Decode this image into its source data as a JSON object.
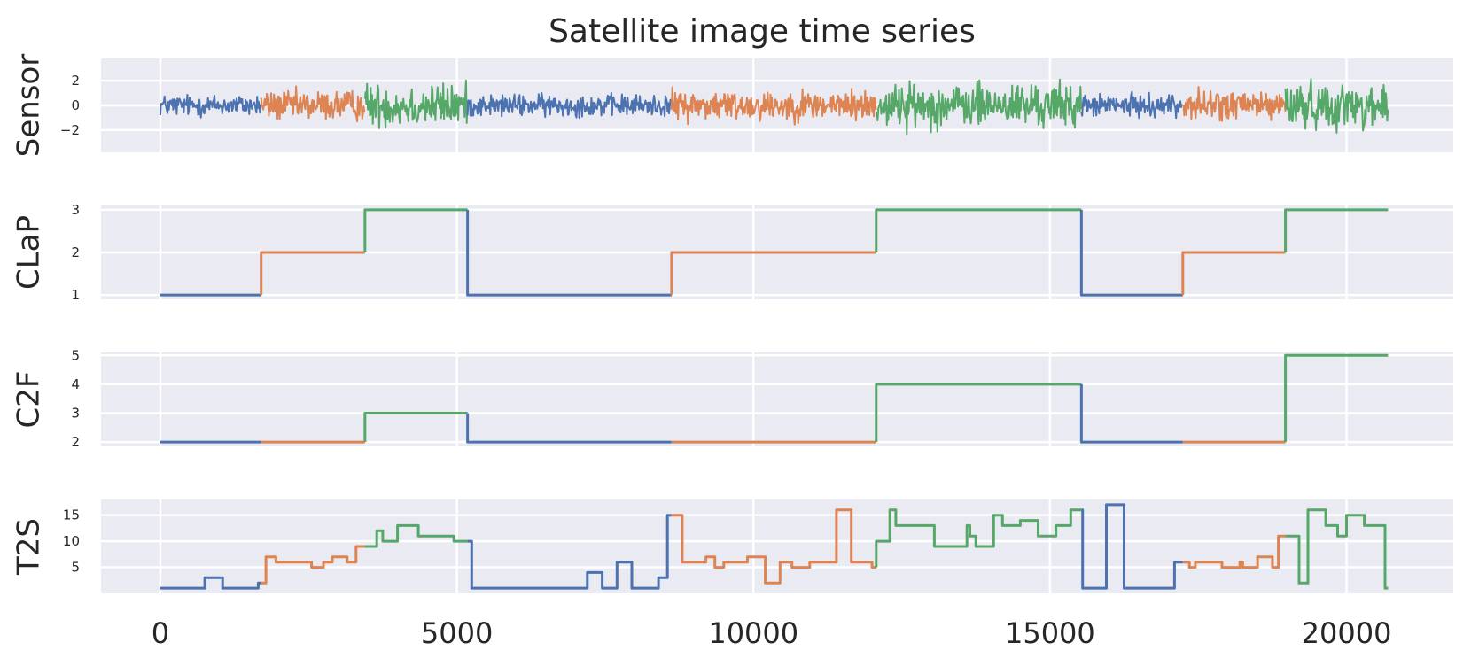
{
  "colors": [
    "#4c72b0",
    "#dd8452",
    "#55a868"
  ],
  "chart_data": {
    "type": "line",
    "title": "Satellite image time series",
    "x_range": [
      -1000,
      21800
    ],
    "x_ticks": [
      0,
      5000,
      10000,
      15000,
      20000
    ],
    "x_tick_labels": [
      "0",
      "5000",
      "10000",
      "15000",
      "20000"
    ],
    "grid": true,
    "segments": [
      {
        "start": 0,
        "end": 1700,
        "class": 0
      },
      {
        "start": 1700,
        "end": 3450,
        "class": 1
      },
      {
        "start": 3450,
        "end": 5180,
        "class": 2
      },
      {
        "start": 5180,
        "end": 8620,
        "class": 0
      },
      {
        "start": 8620,
        "end": 12070,
        "class": 1
      },
      {
        "start": 12070,
        "end": 15530,
        "class": 2
      },
      {
        "start": 15530,
        "end": 17240,
        "class": 0
      },
      {
        "start": 17240,
        "end": 18970,
        "class": 1
      },
      {
        "start": 18970,
        "end": 20700,
        "class": 2
      }
    ],
    "panels": [
      {
        "id": "sensor",
        "ylabel": "Sensor",
        "kind": "signal",
        "ylim": [
          -3.8,
          3.8
        ],
        "yticks": [
          2,
          0,
          -2
        ],
        "ytick_labels": [
          "2",
          "0",
          "−2"
        ],
        "class_amplitude": [
          1.3,
          1.8,
          2.6
        ]
      },
      {
        "id": "clap",
        "ylabel": "CLaP",
        "kind": "step",
        "ylim": [
          0.9,
          3.1
        ],
        "yticks": [
          1,
          2,
          3
        ],
        "ytick_labels": [
          "1",
          "2",
          "3"
        ],
        "steps": [
          {
            "x": [
              0,
              1700
            ],
            "y": 1,
            "class": 0
          },
          {
            "x": [
              1700,
              3450
            ],
            "y": 2,
            "class": 1
          },
          {
            "x": [
              3450,
              5180
            ],
            "y": 3,
            "class": 2
          },
          {
            "x": [
              5180,
              8620
            ],
            "y": 1,
            "class": 0
          },
          {
            "x": [
              8620,
              12070
            ],
            "y": 2,
            "class": 1
          },
          {
            "x": [
              12070,
              15530
            ],
            "y": 3,
            "class": 2
          },
          {
            "x": [
              15530,
              17240
            ],
            "y": 1,
            "class": 0
          },
          {
            "x": [
              17240,
              18970
            ],
            "y": 2,
            "class": 1
          },
          {
            "x": [
              18970,
              20700
            ],
            "y": 3,
            "class": 2
          }
        ]
      },
      {
        "id": "c2f",
        "ylabel": "C2F",
        "kind": "step",
        "ylim": [
          1.85,
          5.1
        ],
        "yticks": [
          2,
          3,
          4,
          5
        ],
        "ytick_labels": [
          "2",
          "3",
          "4",
          "5"
        ],
        "steps": [
          {
            "x": [
              0,
              1700
            ],
            "y": 2,
            "class": 0
          },
          {
            "x": [
              1700,
              3450
            ],
            "y": 2,
            "class": 1
          },
          {
            "x": [
              3450,
              5180
            ],
            "y": 3,
            "class": 2
          },
          {
            "x": [
              5180,
              8620
            ],
            "y": 2,
            "class": 0
          },
          {
            "x": [
              8620,
              12070
            ],
            "y": 2,
            "class": 1
          },
          {
            "x": [
              12070,
              15530
            ],
            "y": 4,
            "class": 2
          },
          {
            "x": [
              15530,
              17240
            ],
            "y": 2,
            "class": 0
          },
          {
            "x": [
              17240,
              18970
            ],
            "y": 2,
            "class": 1
          },
          {
            "x": [
              18970,
              20700
            ],
            "y": 5,
            "class": 2
          }
        ]
      },
      {
        "id": "t2s",
        "ylabel": "T2S",
        "kind": "step_points",
        "ylim": [
          0,
          18
        ],
        "yticks": [
          15,
          10,
          5
        ],
        "ytick_labels": [
          "15",
          "10",
          "5"
        ],
        "series": [
          {
            "class": 0,
            "points": [
              [
                0,
                1
              ],
              [
                750,
                1
              ],
              [
                750,
                3
              ],
              [
                1050,
                3
              ],
              [
                1050,
                1
              ],
              [
                1650,
                1
              ],
              [
                1650,
                2
              ],
              [
                1700,
                2
              ]
            ]
          },
          {
            "class": 1,
            "points": [
              [
                1700,
                2
              ],
              [
                1780,
                2
              ],
              [
                1780,
                7
              ],
              [
                1950,
                7
              ],
              [
                1950,
                6
              ],
              [
                2550,
                6
              ],
              [
                2550,
                5
              ],
              [
                2750,
                5
              ],
              [
                2750,
                6
              ],
              [
                2900,
                6
              ],
              [
                2900,
                7
              ],
              [
                3150,
                7
              ],
              [
                3150,
                6
              ],
              [
                3300,
                6
              ],
              [
                3300,
                9
              ],
              [
                3450,
                9
              ]
            ]
          },
          {
            "class": 2,
            "points": [
              [
                3450,
                9
              ],
              [
                3650,
                9
              ],
              [
                3650,
                12
              ],
              [
                3750,
                12
              ],
              [
                3750,
                10
              ],
              [
                4000,
                10
              ],
              [
                4000,
                13
              ],
              [
                4350,
                13
              ],
              [
                4350,
                11
              ],
              [
                4950,
                11
              ],
              [
                4950,
                10
              ],
              [
                5180,
                10
              ]
            ]
          },
          {
            "class": 0,
            "points": [
              [
                5180,
                10
              ],
              [
                5250,
                10
              ],
              [
                5250,
                1
              ],
              [
                7200,
                1
              ],
              [
                7200,
                4
              ],
              [
                7450,
                4
              ],
              [
                7450,
                1
              ],
              [
                7700,
                1
              ],
              [
                7700,
                6
              ],
              [
                7950,
                6
              ],
              [
                7950,
                1
              ],
              [
                8400,
                1
              ],
              [
                8400,
                3
              ],
              [
                8550,
                3
              ],
              [
                8550,
                15
              ],
              [
                8620,
                15
              ]
            ]
          },
          {
            "class": 1,
            "points": [
              [
                8620,
                15
              ],
              [
                8800,
                15
              ],
              [
                8800,
                6
              ],
              [
                9200,
                6
              ],
              [
                9200,
                7
              ],
              [
                9350,
                7
              ],
              [
                9350,
                5
              ],
              [
                9500,
                5
              ],
              [
                9500,
                6
              ],
              [
                9900,
                6
              ],
              [
                9900,
                7
              ],
              [
                10200,
                7
              ],
              [
                10200,
                2
              ],
              [
                10450,
                2
              ],
              [
                10450,
                6
              ],
              [
                10650,
                6
              ],
              [
                10650,
                5
              ],
              [
                10950,
                5
              ],
              [
                10950,
                6
              ],
              [
                11400,
                6
              ],
              [
                11400,
                16
              ],
              [
                11650,
                16
              ],
              [
                11650,
                6
              ],
              [
                12000,
                6
              ],
              [
                12000,
                5
              ],
              [
                12070,
                5
              ]
            ]
          },
          {
            "class": 2,
            "points": [
              [
                12070,
                5
              ],
              [
                12070,
                10
              ],
              [
                12300,
                10
              ],
              [
                12300,
                16
              ],
              [
                12400,
                16
              ],
              [
                12400,
                13
              ],
              [
                13050,
                13
              ],
              [
                13050,
                9
              ],
              [
                13600,
                9
              ],
              [
                13600,
                13
              ],
              [
                13650,
                13
              ],
              [
                13650,
                11
              ],
              [
                13750,
                11
              ],
              [
                13750,
                9
              ],
              [
                14050,
                9
              ],
              [
                14050,
                15
              ],
              [
                14200,
                15
              ],
              [
                14200,
                13
              ],
              [
                14500,
                13
              ],
              [
                14500,
                14
              ],
              [
                14800,
                14
              ],
              [
                14800,
                11
              ],
              [
                15100,
                11
              ],
              [
                15100,
                13
              ],
              [
                15350,
                13
              ],
              [
                15350,
                16
              ],
              [
                15530,
                16
              ]
            ]
          },
          {
            "class": 0,
            "points": [
              [
                15530,
                16
              ],
              [
                15550,
                16
              ],
              [
                15550,
                1
              ],
              [
                15950,
                1
              ],
              [
                15950,
                17
              ],
              [
                16250,
                17
              ],
              [
                16250,
                1
              ],
              [
                17100,
                1
              ],
              [
                17100,
                6
              ],
              [
                17240,
                6
              ]
            ]
          },
          {
            "class": 1,
            "points": [
              [
                17240,
                6
              ],
              [
                17350,
                6
              ],
              [
                17350,
                5
              ],
              [
                17450,
                5
              ],
              [
                17450,
                6
              ],
              [
                17900,
                6
              ],
              [
                17900,
                5
              ],
              [
                18200,
                5
              ],
              [
                18200,
                6
              ],
              [
                18250,
                6
              ],
              [
                18250,
                5
              ],
              [
                18500,
                5
              ],
              [
                18500,
                7
              ],
              [
                18750,
                7
              ],
              [
                18750,
                5
              ],
              [
                18850,
                5
              ],
              [
                18850,
                11
              ],
              [
                18970,
                11
              ]
            ]
          },
          {
            "class": 2,
            "points": [
              [
                18970,
                11
              ],
              [
                19200,
                11
              ],
              [
                19200,
                2
              ],
              [
                19350,
                2
              ],
              [
                19350,
                16
              ],
              [
                19650,
                16
              ],
              [
                19650,
                13
              ],
              [
                19850,
                13
              ],
              [
                19850,
                11
              ],
              [
                20000,
                11
              ],
              [
                20000,
                15
              ],
              [
                20300,
                15
              ],
              [
                20300,
                13
              ],
              [
                20650,
                13
              ],
              [
                20650,
                1
              ],
              [
                20700,
                1
              ]
            ]
          }
        ]
      }
    ]
  }
}
